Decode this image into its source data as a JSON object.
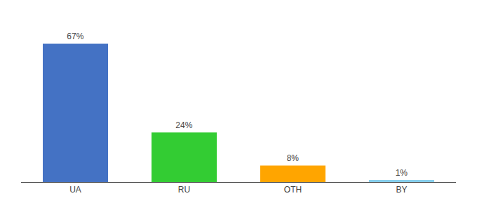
{
  "chart_data": {
    "type": "bar",
    "categories": [
      "UA",
      "RU",
      "OTH",
      "BY"
    ],
    "values": [
      67,
      24,
      8,
      1
    ],
    "value_labels": [
      "67%",
      "24%",
      "8%",
      "1%"
    ],
    "colors": [
      "#4472C4",
      "#33CC33",
      "#FFA500",
      "#87CEEB"
    ],
    "ylim": [
      0,
      78
    ],
    "grid": false,
    "data_labels": true,
    "tick_labels": "x"
  }
}
